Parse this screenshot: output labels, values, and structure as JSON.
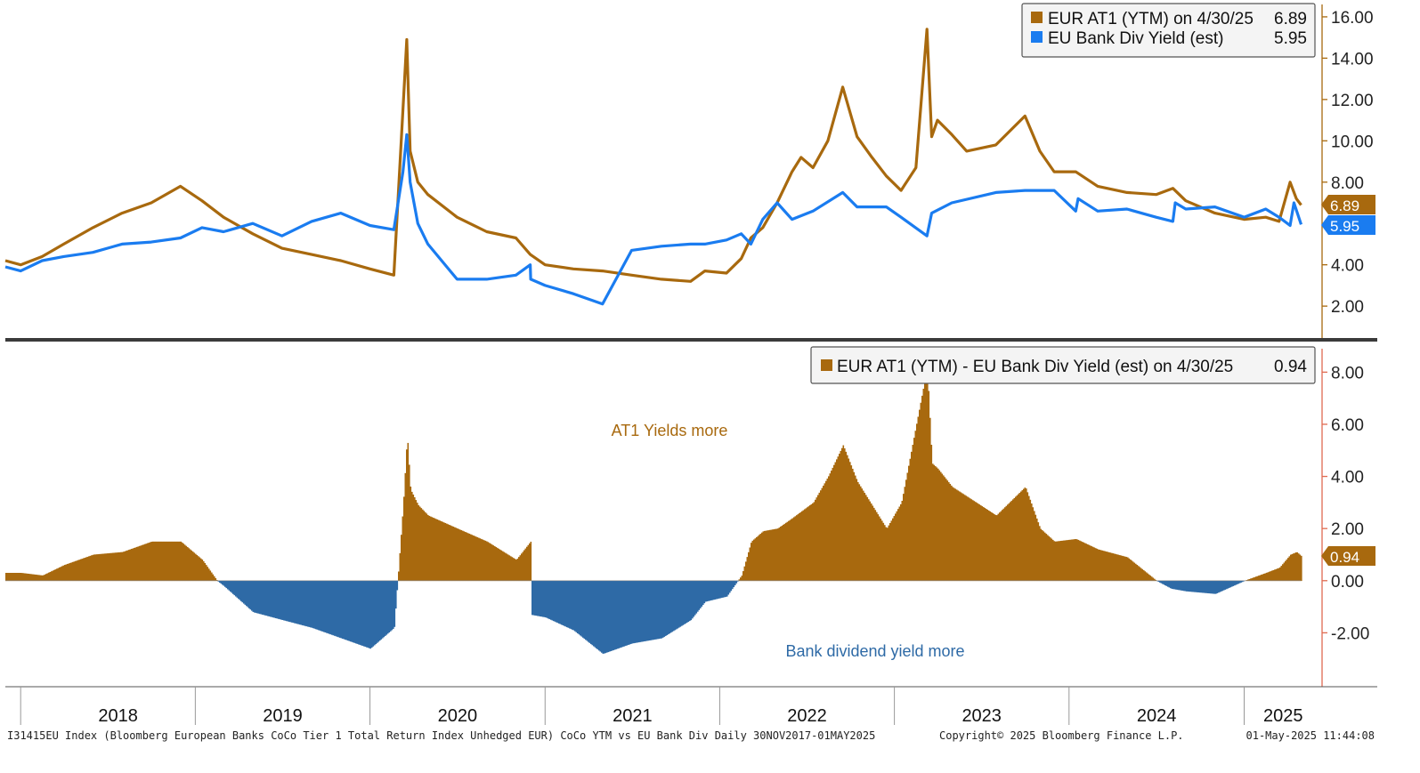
{
  "colors": {
    "at1": "#a8690e",
    "div": "#1a7cf0",
    "negative": "#2e6aa6",
    "frame": "#333333",
    "right_axis_top": "#a8690e",
    "right_axis_bottom": "#e06a50"
  },
  "legend_top": {
    "items": [
      {
        "label": "EUR AT1 (YTM) on 4/30/25",
        "value": "6.89"
      },
      {
        "label": "EU Bank Div Yield (est)",
        "value": "5.95"
      }
    ]
  },
  "legend_bottom": {
    "label": "EUR AT1 (YTM) - EU Bank Div Yield (est) on 4/30/25",
    "value": "0.94"
  },
  "last_value_tags": {
    "at1": "6.89",
    "div": "5.95",
    "spread": "0.94"
  },
  "annotations": {
    "positive": "AT1 Yields more",
    "negative": "Bank dividend yield more"
  },
  "years": [
    "2018",
    "2019",
    "2020",
    "2021",
    "2022",
    "2023",
    "2024",
    "2025"
  ],
  "footer": {
    "left": "I31415EU Index (Bloomberg European Banks CoCo Tier 1 Total Return Index Unhedged EUR) CoCo YTM vs EU Bank Div  Daily 30NOV2017-01MAY2025",
    "center": "Copyright© 2025 Bloomberg Finance L.P.",
    "right": "01-May-2025 11:44:08"
  },
  "chart_data": [
    {
      "type": "line",
      "date_range": [
        "2017-11-30",
        "2025-05-01"
      ],
      "yticks": [
        "2.00",
        "4.00",
        "6.00",
        "8.00",
        "10.00",
        "12.00",
        "14.00",
        "16.00"
      ],
      "ylim": [
        0.8,
        16.6
      ],
      "series": [
        {
          "name": "EUR AT1 (YTM)",
          "x": [
            "2017-11-30",
            "2018-01-01",
            "2018-02-15",
            "2018-04-01",
            "2018-06-01",
            "2018-08-01",
            "2018-10-01",
            "2018-12-01",
            "2019-01-15",
            "2019-03-01",
            "2019-05-01",
            "2019-07-01",
            "2019-09-01",
            "2019-11-01",
            "2020-01-01",
            "2020-02-20",
            "2020-03-10",
            "2020-03-18",
            "2020-03-25",
            "2020-04-10",
            "2020-05-01",
            "2020-07-01",
            "2020-09-01",
            "2020-11-01",
            "2020-12-01",
            "2021-01-01",
            "2021-03-01",
            "2021-05-01",
            "2021-07-01",
            "2021-09-01",
            "2021-11-01",
            "2021-12-01",
            "2022-01-15",
            "2022-02-15",
            "2022-03-07",
            "2022-04-01",
            "2022-05-01",
            "2022-06-01",
            "2022-06-20",
            "2022-07-15",
            "2022-08-15",
            "2022-09-15",
            "2022-10-15",
            "2022-11-15",
            "2022-12-15",
            "2023-01-15",
            "2023-02-15",
            "2023-03-10",
            "2023-03-20",
            "2023-04-01",
            "2023-05-01",
            "2023-06-01",
            "2023-08-01",
            "2023-10-01",
            "2023-11-01",
            "2023-12-01",
            "2024-01-15",
            "2024-03-01",
            "2024-05-01",
            "2024-07-01",
            "2024-08-05",
            "2024-09-01",
            "2024-11-01",
            "2025-01-01",
            "2025-02-15",
            "2025-03-15",
            "2025-04-07",
            "2025-04-20",
            "2025-04-30"
          ],
          "y": [
            4.2,
            4.0,
            4.4,
            5.0,
            5.8,
            6.5,
            7.0,
            7.8,
            7.1,
            6.3,
            5.5,
            4.8,
            4.5,
            4.2,
            3.8,
            3.5,
            11.5,
            14.9,
            9.5,
            8.0,
            7.4,
            6.3,
            5.6,
            5.3,
            4.5,
            4.0,
            3.8,
            3.7,
            3.5,
            3.3,
            3.2,
            3.7,
            3.6,
            4.3,
            5.3,
            5.8,
            7.0,
            8.5,
            9.2,
            8.7,
            10.0,
            12.6,
            10.2,
            9.2,
            8.3,
            7.6,
            8.7,
            15.4,
            10.2,
            11.0,
            10.3,
            9.5,
            9.8,
            11.2,
            9.5,
            8.5,
            8.5,
            7.8,
            7.5,
            7.4,
            7.7,
            7.1,
            6.5,
            6.2,
            6.3,
            6.1,
            8.0,
            7.2,
            6.89
          ]
        },
        {
          "name": "EU Bank Div Yield (est)",
          "x": [
            "2017-11-30",
            "2018-01-01",
            "2018-02-15",
            "2018-04-01",
            "2018-06-01",
            "2018-08-01",
            "2018-10-01",
            "2018-12-01",
            "2019-01-15",
            "2019-03-01",
            "2019-05-01",
            "2019-07-01",
            "2019-09-01",
            "2019-11-01",
            "2020-01-01",
            "2020-02-20",
            "2020-03-10",
            "2020-03-18",
            "2020-03-25",
            "2020-04-10",
            "2020-05-01",
            "2020-07-01",
            "2020-09-01",
            "2020-11-01",
            "2020-12-01",
            "2020-12-02",
            "2021-01-01",
            "2021-03-01",
            "2021-05-01",
            "2021-07-01",
            "2021-09-01",
            "2021-11-01",
            "2021-12-01",
            "2022-01-15",
            "2022-02-15",
            "2022-03-07",
            "2022-04-01",
            "2022-05-01",
            "2022-06-01",
            "2022-07-15",
            "2022-09-15",
            "2022-10-15",
            "2022-12-15",
            "2023-01-15",
            "2023-03-10",
            "2023-03-20",
            "2023-05-01",
            "2023-08-01",
            "2023-10-01",
            "2023-12-01",
            "2024-01-15",
            "2024-01-20",
            "2024-03-01",
            "2024-05-01",
            "2024-07-01",
            "2024-08-05",
            "2024-08-10",
            "2024-09-01",
            "2024-11-01",
            "2025-01-01",
            "2025-02-15",
            "2025-03-15",
            "2025-04-07",
            "2025-04-15",
            "2025-04-30"
          ],
          "y": [
            3.9,
            3.7,
            4.2,
            4.4,
            4.6,
            5.0,
            5.1,
            5.3,
            5.8,
            5.6,
            6.0,
            5.4,
            6.1,
            6.5,
            5.9,
            5.7,
            8.5,
            10.3,
            8.0,
            6.0,
            5.0,
            3.3,
            3.3,
            3.5,
            4.0,
            3.3,
            3.0,
            2.6,
            2.1,
            4.7,
            4.9,
            5.0,
            5.0,
            5.2,
            5.5,
            5.0,
            6.2,
            7.0,
            6.2,
            6.6,
            7.5,
            6.8,
            6.8,
            6.3,
            5.4,
            6.5,
            7.0,
            7.5,
            7.6,
            7.6,
            6.6,
            7.2,
            6.6,
            6.7,
            6.3,
            6.1,
            7.0,
            6.7,
            6.8,
            6.3,
            6.7,
            6.3,
            5.9,
            7.0,
            5.95
          ]
        }
      ]
    },
    {
      "type": "area",
      "name": "EUR AT1 (YTM) - EU Bank Div Yield (est)",
      "yticks": [
        "-2.00",
        "0.00",
        "2.00",
        "4.00",
        "6.00",
        "8.00"
      ],
      "ylim": [
        -4.0,
        8.9
      ],
      "x": [
        "2017-11-30",
        "2018-01-01",
        "2018-02-15",
        "2018-04-01",
        "2018-06-01",
        "2018-08-01",
        "2018-10-01",
        "2018-12-01",
        "2019-01-15",
        "2019-02-15",
        "2019-03-01",
        "2019-05-01",
        "2019-07-01",
        "2019-09-01",
        "2019-11-01",
        "2020-01-01",
        "2020-02-20",
        "2020-03-10",
        "2020-03-18",
        "2020-03-25",
        "2020-04-10",
        "2020-05-01",
        "2020-07-01",
        "2020-09-01",
        "2020-11-01",
        "2020-12-01",
        "2020-12-02",
        "2021-01-01",
        "2021-03-01",
        "2021-05-01",
        "2021-07-01",
        "2021-09-01",
        "2021-11-01",
        "2021-12-01",
        "2022-01-15",
        "2022-02-15",
        "2022-03-07",
        "2022-04-01",
        "2022-05-01",
        "2022-06-01",
        "2022-07-15",
        "2022-08-15",
        "2022-09-15",
        "2022-10-15",
        "2022-12-15",
        "2023-01-15",
        "2023-03-10",
        "2023-03-20",
        "2023-04-01",
        "2023-05-01",
        "2023-08-01",
        "2023-10-01",
        "2023-11-01",
        "2023-12-01",
        "2024-01-15",
        "2024-03-01",
        "2024-05-01",
        "2024-07-01",
        "2024-08-01",
        "2024-09-01",
        "2024-11-01",
        "2025-01-01",
        "2025-02-15",
        "2025-03-15",
        "2025-04-07",
        "2025-04-20",
        "2025-04-30"
      ],
      "y": [
        0.3,
        0.3,
        0.2,
        0.6,
        1.0,
        1.1,
        1.5,
        1.5,
        0.8,
        0.0,
        -0.2,
        -1.2,
        -1.5,
        -1.8,
        -2.2,
        -2.6,
        -1.8,
        3.0,
        5.6,
        3.5,
        2.9,
        2.5,
        2.0,
        1.5,
        0.8,
        1.5,
        -1.3,
        -1.4,
        -1.9,
        -2.8,
        -2.4,
        -2.2,
        -1.5,
        -0.8,
        -0.6,
        0.2,
        1.5,
        1.9,
        2.0,
        2.4,
        3.0,
        4.0,
        5.2,
        3.8,
        2.0,
        3.0,
        8.2,
        4.5,
        4.3,
        3.6,
        2.5,
        3.6,
        2.0,
        1.5,
        1.6,
        1.2,
        0.9,
        0.0,
        -0.3,
        -0.4,
        -0.5,
        0.0,
        0.3,
        0.5,
        1.0,
        1.1,
        0.94
      ]
    }
  ]
}
